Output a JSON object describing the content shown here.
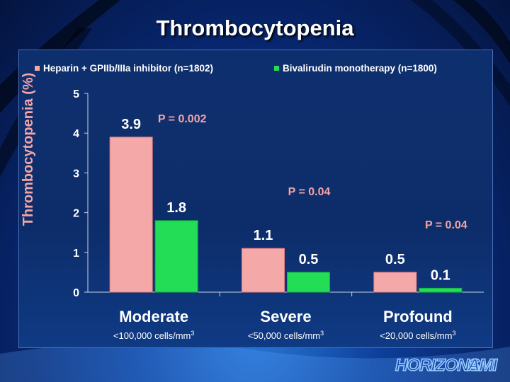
{
  "slide": {
    "title": "Thrombocytopenia",
    "watermark": "HORIZONS AMI"
  },
  "colors": {
    "heparin": "#f4a8a8",
    "bivalirudin": "#22dd55",
    "text_white": "#ffffff",
    "p_value": "#f4a4a4"
  },
  "chart_data": {
    "type": "bar",
    "title": "",
    "xlabel": "",
    "ylabel": "Thrombocytopenia (%)",
    "ylim": [
      0,
      5
    ],
    "yticks": [
      "0",
      "1",
      "2",
      "3",
      "4",
      "5"
    ],
    "categories": [
      "Moderate",
      "Severe",
      "Profound"
    ],
    "category_sublabels": [
      {
        "base": "<100,000 cells/mm",
        "sup": "3"
      },
      {
        "base": "<50,000 cells/mm",
        "sup": "3"
      },
      {
        "base": "<20,000 cells/mm",
        "sup": "3"
      }
    ],
    "series": [
      {
        "name": "Heparin + GPIIb/IIIa inhibitor (n=1802)",
        "values": [
          3.9,
          1.1,
          0.5
        ],
        "labels": [
          "3.9",
          "1.1",
          "0.5"
        ]
      },
      {
        "name": "Bivalirudin monotherapy (n=1800)",
        "values": [
          1.8,
          0.5,
          0.1
        ],
        "labels": [
          "1.8",
          "0.5",
          "0.1"
        ]
      }
    ],
    "p_values": [
      "P = 0.002",
      "P = 0.04",
      "P = 0.04"
    ],
    "grid": false,
    "legend_position": "top"
  }
}
